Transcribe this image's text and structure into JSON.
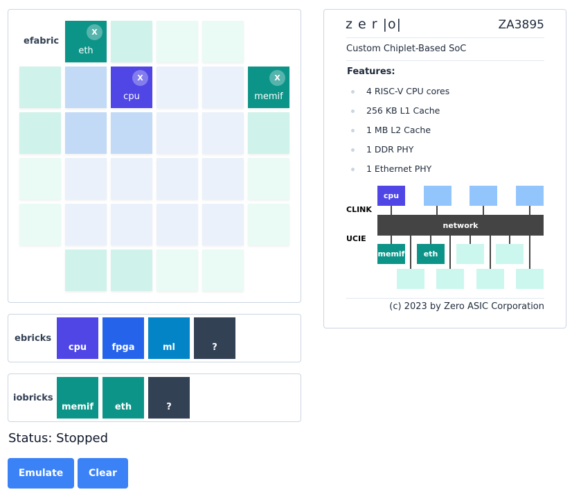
{
  "efabric": {
    "label": "efabric",
    "remove_label": "X",
    "placed": [
      {
        "name": "eth",
        "color": "#0d9488"
      },
      {
        "name": "cpu",
        "color": "#4f46e5"
      },
      {
        "name": "memif",
        "color": "#0d9488"
      }
    ],
    "cell_colors": {
      "io_active": "#cff2ea",
      "io_idle": "#eafaf5",
      "core_active": "#c2daf5",
      "core_idle": "#eaf1fa"
    }
  },
  "ebricks": {
    "label": "ebricks",
    "items": [
      {
        "name": "cpu",
        "color": "#4f46e5"
      },
      {
        "name": "fpga",
        "color": "#2563eb"
      },
      {
        "name": "ml",
        "color": "#0284c7"
      },
      {
        "name": "?",
        "color": "#334155"
      }
    ]
  },
  "iobricks": {
    "label": "iobricks",
    "items": [
      {
        "name": "memif",
        "color": "#0d9488"
      },
      {
        "name": "eth",
        "color": "#0d9488"
      },
      {
        "name": "?",
        "color": "#334155"
      }
    ]
  },
  "status": {
    "text": "Status: Stopped"
  },
  "buttons": {
    "emulate": "Emulate",
    "clear": "Clear"
  },
  "spec": {
    "logo": "z e r |o|",
    "part": "ZA3895",
    "subtitle": "Custom Chiplet-Based SoC",
    "features_title": "Features:",
    "features": [
      "4 RISC-V CPU cores",
      "256 KB L1 Cache",
      "1 MB L2 Cache",
      "1 DDR PHY",
      "1 Ethernet PHY"
    ],
    "diagram": {
      "clink": "CLINK",
      "ucie": "UCIE",
      "network": "network",
      "cpu": "cpu",
      "memif": "memif",
      "eth": "eth"
    },
    "footer": "(c) 2023 by Zero ASIC Corporation"
  }
}
